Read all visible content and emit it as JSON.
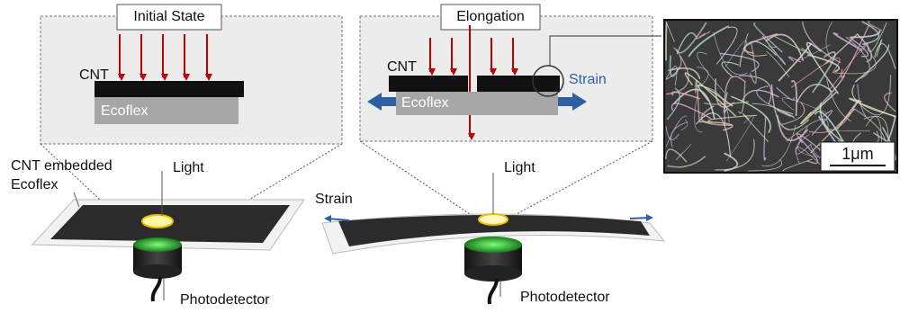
{
  "initial_panel": {
    "title": "Initial State",
    "cnt_label": "CNT",
    "substrate_label": "Ecoflex",
    "device_label": [
      "CNT embedded",
      "Ecoflex"
    ],
    "light_label": "Light",
    "detector_label": "Photodetector"
  },
  "elongation_panel": {
    "title": "Elongation",
    "cnt_label": "CNT",
    "substrate_label": "Ecoflex",
    "inset_strain_label": "Strain",
    "strain_label": "Strain",
    "light_label": "Light",
    "detector_label": "Photodetector"
  },
  "sem_image": {
    "scale_label": "1μm"
  }
}
